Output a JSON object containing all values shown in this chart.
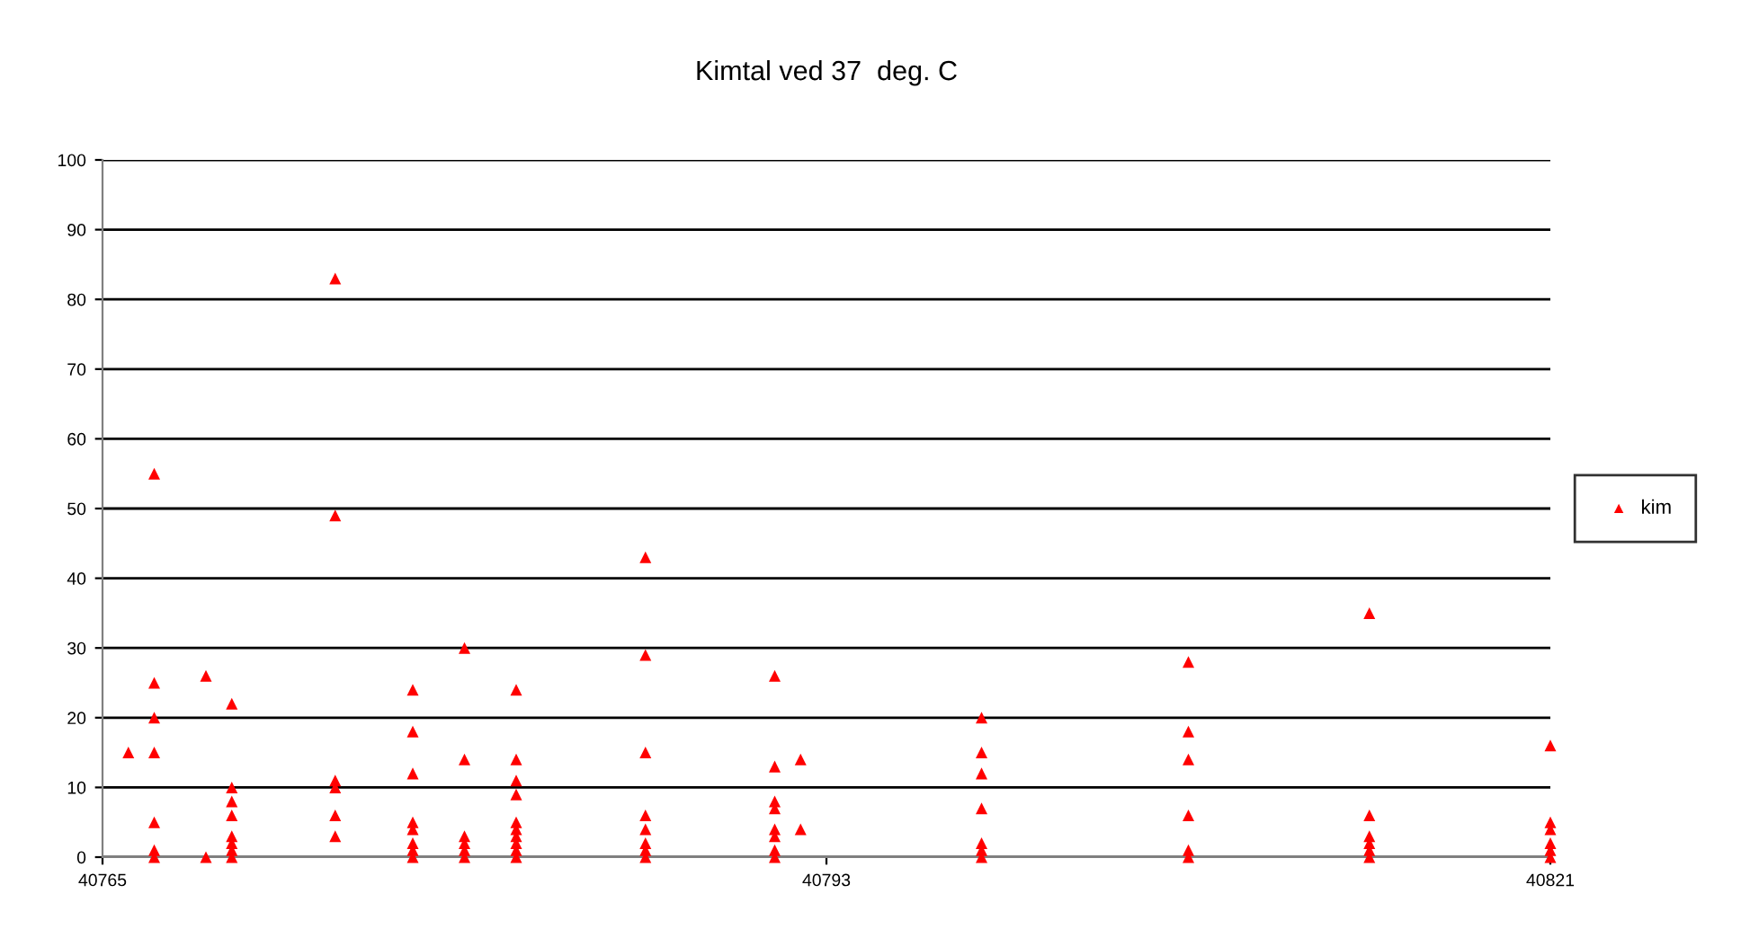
{
  "chart_data": {
    "type": "scatter",
    "title": "Kimtal ved 37  deg. C",
    "series": [
      {
        "name": "kim",
        "color": "#ff0000",
        "x": [
          40766,
          40767,
          40767,
          40767,
          40767,
          40767,
          40767,
          40767,
          40769,
          40769,
          40770,
          40770,
          40770,
          40770,
          40770,
          40770,
          40770,
          40770,
          40774,
          40774,
          40774,
          40774,
          40774,
          40774,
          40777,
          40777,
          40777,
          40777,
          40777,
          40777,
          40777,
          40777,
          40779,
          40779,
          40779,
          40779,
          40779,
          40779,
          40781,
          40781,
          40781,
          40781,
          40781,
          40781,
          40781,
          40781,
          40781,
          40781,
          40786,
          40786,
          40786,
          40786,
          40786,
          40786,
          40786,
          40786,
          40791,
          40791,
          40791,
          40791,
          40791,
          40791,
          40791,
          40791,
          40792,
          40792,
          40799,
          40799,
          40799,
          40799,
          40799,
          40799,
          40799,
          40807,
          40807,
          40807,
          40807,
          40807,
          40807,
          40814,
          40814,
          40814,
          40814,
          40814,
          40814,
          40821,
          40821,
          40821,
          40821,
          40821,
          40821
        ],
        "values": [
          15,
          55,
          25,
          20,
          15,
          5,
          1,
          0,
          26,
          0,
          22,
          10,
          8,
          6,
          3,
          2,
          1,
          0,
          83,
          49,
          11,
          10,
          6,
          3,
          24,
          18,
          12,
          5,
          4,
          2,
          1,
          0,
          30,
          14,
          3,
          2,
          1,
          0,
          24,
          14,
          11,
          9,
          5,
          4,
          3,
          2,
          1,
          0,
          43,
          29,
          15,
          6,
          4,
          2,
          1,
          0,
          26,
          13,
          8,
          7,
          4,
          3,
          1,
          0,
          14,
          4,
          20,
          15,
          12,
          7,
          2,
          1,
          0,
          28,
          18,
          14,
          6,
          1,
          0,
          35,
          6,
          3,
          2,
          1,
          0,
          16,
          5,
          4,
          2,
          1,
          0
        ]
      }
    ],
    "xlim": [
      40765,
      40821
    ],
    "xticks": [
      40765,
      40793,
      40821
    ],
    "ylim": [
      0,
      100
    ],
    "yticks": [
      0,
      10,
      20,
      30,
      40,
      50,
      60,
      70,
      80,
      90,
      100
    ],
    "grid": "y",
    "legend": "right",
    "marker": "triangle"
  }
}
